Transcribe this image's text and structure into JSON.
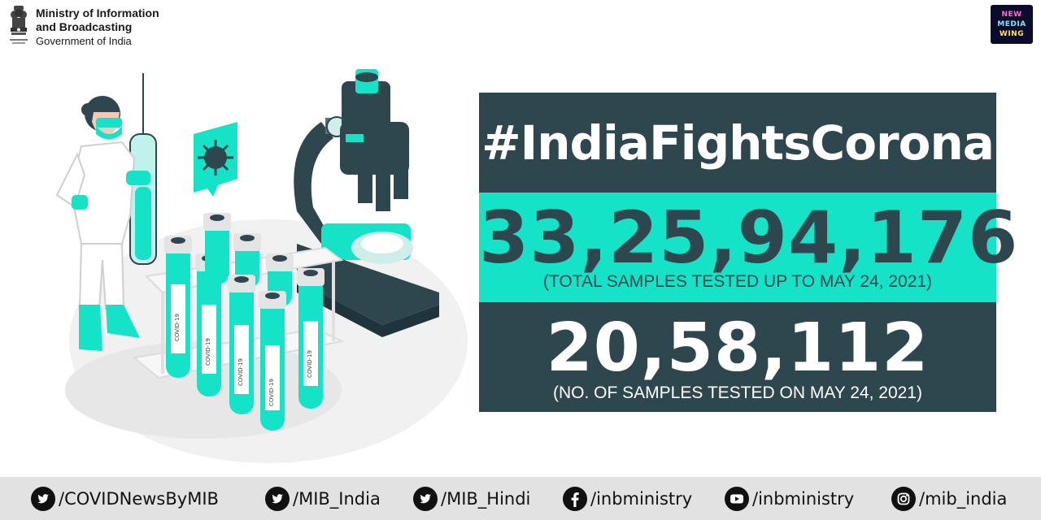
{
  "header": {
    "ministry_line1": "Ministry of Information",
    "ministry_line2": "and Broadcasting",
    "government": "Government of India",
    "emblem_icon": "national-emblem-icon",
    "logo_lines": [
      "NEW",
      "MEDIA",
      "WING"
    ]
  },
  "stats": {
    "hashtag": "#IndiaFightsCorona",
    "total_value": "33,25,94,176",
    "total_caption": "(TOTAL SAMPLES TESTED UP TO MAY 24, 2021)",
    "daily_value": "20,58,112",
    "daily_caption": "(NO. OF SAMPLES TESTED ON MAY 24, 2021)"
  },
  "illustration": {
    "tube_label": "COVID-19"
  },
  "footer": {
    "handles": [
      {
        "icon": "twitter-icon",
        "text": "/COVIDNewsByMIB"
      },
      {
        "icon": "twitter-icon",
        "text": "/MIB_India"
      },
      {
        "icon": "twitter-icon",
        "text": "/MIB_Hindi"
      },
      {
        "icon": "facebook-icon",
        "text": "/inbministry"
      },
      {
        "icon": "youtube-icon",
        "text": "/inbministry"
      },
      {
        "icon": "instagram-icon",
        "text": "/mib_india"
      }
    ]
  },
  "colors": {
    "teal": "#14e3c7",
    "dark_slate": "#2e474e",
    "footer_bg": "#e2e2e2"
  }
}
